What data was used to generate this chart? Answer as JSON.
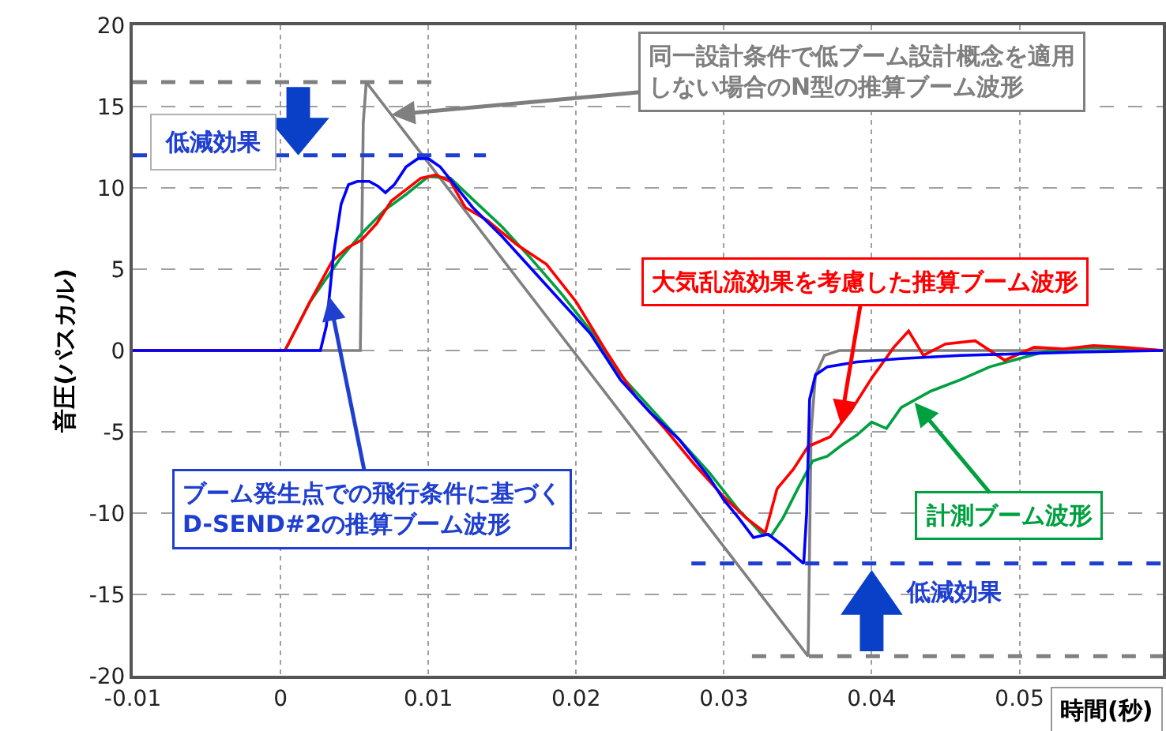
{
  "chart_data": {
    "type": "line",
    "xlabel": "時間(秒)",
    "ylabel": "音圧(パスカル)",
    "xlim": [
      -0.01,
      0.0597
    ],
    "xticks": [
      -0.01,
      0,
      0.01,
      0.02,
      0.03,
      0.04,
      0.05
    ],
    "ylim": [
      -20,
      20
    ],
    "yticks": [
      -20,
      -15,
      -10,
      -5,
      0,
      5,
      10,
      15,
      20
    ],
    "grid": true,
    "marker": "none",
    "series": [
      {
        "color": "#808080",
        "line_style": "solid",
        "x": [
          -0.01,
          0.0054,
          0.0056,
          0.0058,
          0.0357,
          0.0359,
          0.0362,
          0.0368,
          0.0378,
          0.0597
        ],
        "values": [
          0,
          0,
          14,
          16.5,
          -18.8,
          -5,
          -1.5,
          -0.3,
          0,
          0
        ]
      },
      {
        "color": "#00a040",
        "line_style": "solid",
        "x": [
          -0.01,
          0.0003,
          0.002,
          0.004,
          0.0055,
          0.007,
          0.0085,
          0.01,
          0.0115,
          0.013,
          0.015,
          0.017,
          0.019,
          0.021,
          0.023,
          0.025,
          0.027,
          0.029,
          0.031,
          0.0325,
          0.0332,
          0.034,
          0.035,
          0.036,
          0.037,
          0.038,
          0.039,
          0.04,
          0.041,
          0.042,
          0.044,
          0.046,
          0.048,
          0.05,
          0.052,
          0.055,
          0.0597
        ],
        "values": [
          0,
          0,
          3,
          5.6,
          7.2,
          8.6,
          9.6,
          10.7,
          10.6,
          9.3,
          7.6,
          5.6,
          3.5,
          1.2,
          -1.5,
          -3.5,
          -5.5,
          -7.5,
          -9.8,
          -11.2,
          -11.4,
          -10.3,
          -8.5,
          -6.8,
          -6.5,
          -5.8,
          -5.2,
          -4.4,
          -4.8,
          -3.5,
          -2.5,
          -1.8,
          -1,
          -0.5,
          0,
          0.2,
          0
        ]
      },
      {
        "color": "#ff0000",
        "line_style": "solid",
        "x": [
          -0.01,
          0.0003,
          0.002,
          0.0035,
          0.0045,
          0.0055,
          0.0065,
          0.0075,
          0.0085,
          0.0095,
          0.0105,
          0.0115,
          0.0125,
          0.014,
          0.016,
          0.018,
          0.02,
          0.022,
          0.024,
          0.026,
          0.028,
          0.03,
          0.0315,
          0.0328,
          0.0336,
          0.0347,
          0.0357,
          0.0372,
          0.0386,
          0.04,
          0.0415,
          0.0425,
          0.0435,
          0.045,
          0.047,
          0.049,
          0.051,
          0.053,
          0.055,
          0.057,
          0.0597
        ],
        "values": [
          0,
          0,
          3,
          5.5,
          6.3,
          6.8,
          7.8,
          9.2,
          9.9,
          10.6,
          10.8,
          10.4,
          8.8,
          8,
          6.5,
          5.3,
          3,
          0,
          -2.8,
          -4.8,
          -7,
          -9,
          -10.3,
          -11.2,
          -8.5,
          -7.3,
          -5.9,
          -5.3,
          -3.7,
          -1.7,
          0.2,
          1.2,
          -0.3,
          0.4,
          0.6,
          -0.6,
          0.2,
          0.1,
          0.3,
          0.2,
          0
        ]
      },
      {
        "color": "#0000ff",
        "line_style": "solid",
        "x": [
          -0.01,
          0.0027,
          0.0031,
          0.0036,
          0.0041,
          0.0046,
          0.0052,
          0.006,
          0.0066,
          0.0071,
          0.0077,
          0.0085,
          0.0093,
          0.01,
          0.0108,
          0.0115,
          0.013,
          0.015,
          0.017,
          0.019,
          0.021,
          0.023,
          0.025,
          0.027,
          0.029,
          0.03,
          0.031,
          0.032,
          0.033,
          0.034,
          0.035,
          0.0354,
          0.0356,
          0.0358,
          0.0362,
          0.037,
          0.039,
          0.042,
          0.046,
          0.05,
          0.054,
          0.0597
        ],
        "values": [
          0,
          0,
          1.5,
          6,
          9,
          10.2,
          10.4,
          10.4,
          10.1,
          9.7,
          10.2,
          11.3,
          11.8,
          11.8,
          11.3,
          10.5,
          8.8,
          7,
          5,
          3,
          1,
          -1.8,
          -3.8,
          -5.5,
          -7.8,
          -9.2,
          -10.3,
          -11.5,
          -11.3,
          -12,
          -12.8,
          -13.1,
          -10,
          -3,
          -1.5,
          -1,
          -0.7,
          -0.5,
          -0.3,
          -0.2,
          -0.1,
          0
        ]
      },
      {
        "color": "#808080",
        "line_style": "dashed",
        "x": [
          -0.01,
          0.0102
        ],
        "values": [
          16.5,
          16.5
        ]
      },
      {
        "color": "#808080",
        "line_style": "dashed",
        "x": [
          0.0319,
          0.0597
        ],
        "values": [
          -18.8,
          -18.8
        ]
      },
      {
        "color": "#1f3fd0",
        "line_style": "dashed",
        "x": [
          -0.01,
          0.0139
        ],
        "values": [
          12,
          12
        ]
      },
      {
        "color": "#1f3fd0",
        "line_style": "dashed",
        "x": [
          0.0278,
          0.0597
        ],
        "values": [
          -13.1,
          -13.1
        ]
      }
    ],
    "annotations": [
      {
        "text": "同一設計条件で低ブーム設計概念を適用しない場合のN型の推算ブーム波形",
        "x": 0.0075,
        "y": 14.5
      },
      {
        "text": "大気乱流効果を考慮した推算ブーム波形",
        "x": 0.0379,
        "y": -4.5
      },
      {
        "text": "ブーム発生点での飛行条件に基づくD-SEND#2の推算ブーム波形",
        "x": 0.0033,
        "y": 3.3
      },
      {
        "text": "計測ブーム波形",
        "x": 0.0429,
        "y": -3.2
      },
      "低減効果",
      "低減効果"
    ]
  }
}
